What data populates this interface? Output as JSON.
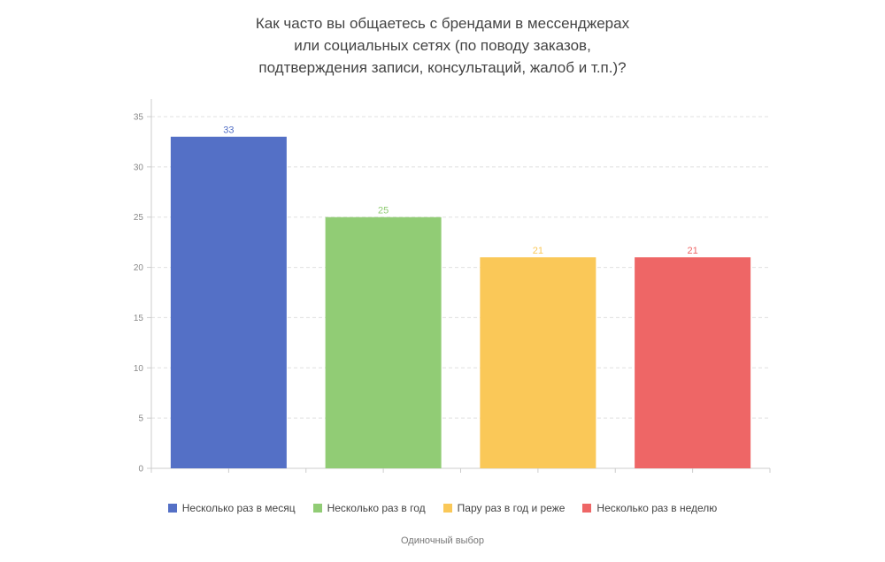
{
  "chart_data": {
    "type": "bar",
    "title_lines": [
      "Как часто вы общаетесь с брендами в мессенджерах",
      "или социальных сетях (по поводу заказов,",
      "подтверждения записи, консультаций, жалоб и т.п.)?"
    ],
    "categories": [
      "Несколько раз в месяц",
      "Несколько раз в год",
      "Пару раз в год и реже",
      "Несколько раз в неделю"
    ],
    "values": [
      33,
      25,
      21,
      21
    ],
    "value_labels": [
      "33",
      "25",
      "21",
      "21"
    ],
    "colors": [
      "#5470c6",
      "#91cc75",
      "#fac858",
      "#ee6666"
    ],
    "yticks": [
      "0",
      "5",
      "10",
      "15",
      "20",
      "25",
      "30",
      "35"
    ],
    "ylim": [
      0,
      35
    ],
    "grid": true,
    "legend_position": "bottom",
    "footer": "Одиночный выбор"
  }
}
